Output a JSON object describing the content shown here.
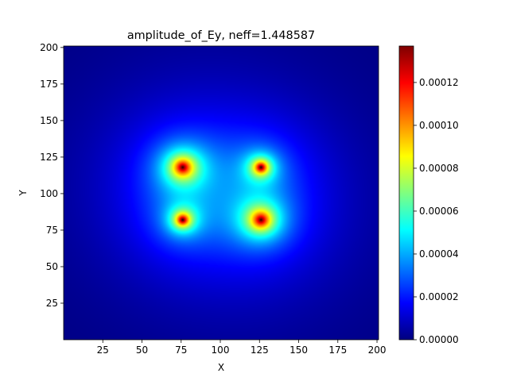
{
  "chart_data": {
    "type": "heatmap",
    "title": "amplitude_of_Ey, neff=1.448587",
    "xlabel": "X",
    "ylabel": "Y",
    "xlim": [
      0,
      201
    ],
    "ylim": [
      0,
      201
    ],
    "x_ticks": [
      25,
      50,
      75,
      100,
      125,
      150,
      175,
      200
    ],
    "y_ticks": [
      25,
      50,
      75,
      100,
      125,
      150,
      175,
      200
    ],
    "colormap": "jet",
    "colorbar": {
      "min": 0,
      "max": 0.000137,
      "ticks": [
        0,
        2e-05,
        4e-05,
        6e-05,
        8e-05,
        0.0001,
        0.00012
      ],
      "tick_labels": [
        "0.00000",
        "0.00002",
        "0.00004",
        "0.00006",
        "0.00008",
        "0.00010",
        "0.00012"
      ]
    },
    "peaks": [
      {
        "x": 76,
        "y": 118,
        "value": 0.000137,
        "spread": 8.0
      },
      {
        "x": 126,
        "y": 118,
        "value": 0.000137,
        "spread": 5.0
      },
      {
        "x": 76,
        "y": 82,
        "value": 0.000137,
        "spread": 5.0
      },
      {
        "x": 126,
        "y": 82,
        "value": 0.000137,
        "spread": 8.0
      }
    ]
  }
}
